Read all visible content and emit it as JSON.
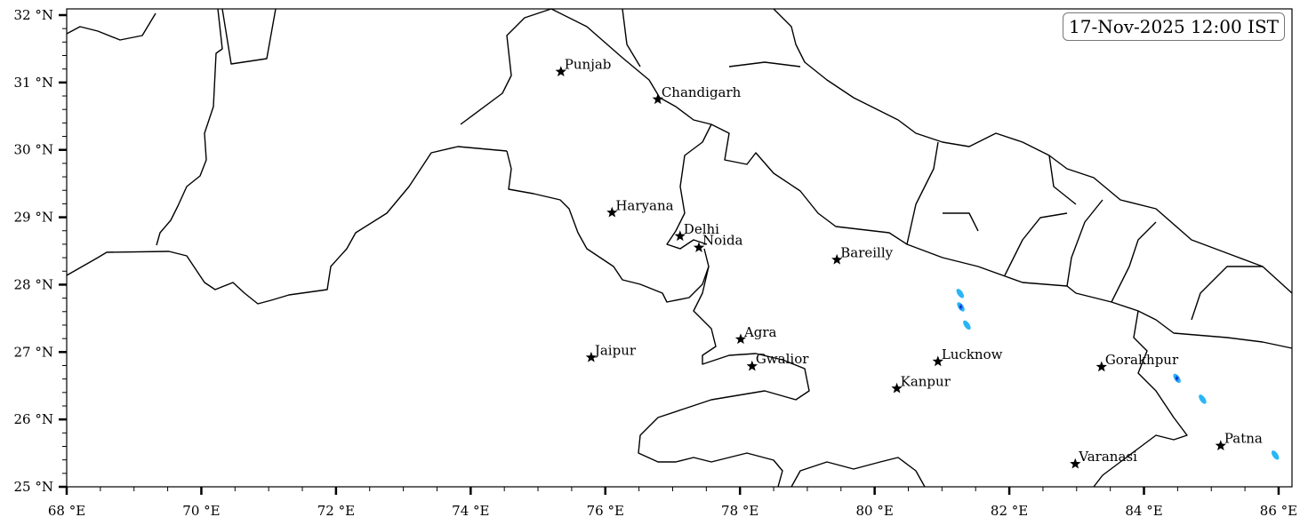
{
  "map": {
    "timestamp": "17-Nov-2025 12:00 IST",
    "extent": {
      "lon": [
        68,
        86.2
      ],
      "lat": [
        25,
        32.1
      ]
    },
    "x_ticks": [
      {
        "value": 68,
        "label": "68 °E"
      },
      {
        "value": 70,
        "label": "70 °E"
      },
      {
        "value": 72,
        "label": "72 °E"
      },
      {
        "value": 74,
        "label": "74 °E"
      },
      {
        "value": 76,
        "label": "76 °E"
      },
      {
        "value": 78,
        "label": "78 °E"
      },
      {
        "value": 80,
        "label": "80 °E"
      },
      {
        "value": 82,
        "label": "82 °E"
      },
      {
        "value": 84,
        "label": "84 °E"
      },
      {
        "value": 86,
        "label": "86 °E"
      }
    ],
    "y_ticks": [
      {
        "value": 25,
        "label": "25 °N"
      },
      {
        "value": 26,
        "label": "26 °N"
      },
      {
        "value": 27,
        "label": "27 °N"
      },
      {
        "value": 28,
        "label": "28 °N"
      },
      {
        "value": 29,
        "label": "29 °N"
      },
      {
        "value": 30,
        "label": "30 °N"
      },
      {
        "value": 31,
        "label": "31 °N"
      },
      {
        "value": 32,
        "label": "32 °N"
      }
    ],
    "cities": [
      {
        "name": "Punjab",
        "lon": 75.34,
        "lat": 31.16
      },
      {
        "name": "Chandigarh",
        "lon": 76.78,
        "lat": 30.75
      },
      {
        "name": "Haryana",
        "lon": 76.1,
        "lat": 29.07
      },
      {
        "name": "Delhi",
        "lon": 77.11,
        "lat": 28.72
      },
      {
        "name": "Noida",
        "lon": 77.39,
        "lat": 28.55
      },
      {
        "name": "Bareilly",
        "lon": 79.44,
        "lat": 28.37
      },
      {
        "name": "Agra",
        "lon": 78.01,
        "lat": 27.19
      },
      {
        "name": "Jaipur",
        "lon": 75.79,
        "lat": 26.92
      },
      {
        "name": "Gwalior",
        "lon": 78.18,
        "lat": 26.79
      },
      {
        "name": "Lucknow",
        "lon": 80.94,
        "lat": 26.86
      },
      {
        "name": "Kanpur",
        "lon": 80.33,
        "lat": 26.46
      },
      {
        "name": "Gorakhpur",
        "lon": 83.37,
        "lat": 26.78
      },
      {
        "name": "Varanasi",
        "lon": 82.98,
        "lat": 25.34
      },
      {
        "name": "Patna",
        "lon": 85.14,
        "lat": 25.61
      }
    ],
    "precip_cells": [
      {
        "lon": 81.27,
        "lat": 27.87,
        "intensity": "light"
      },
      {
        "lon": 81.28,
        "lat": 27.67,
        "intensity": "heavy"
      },
      {
        "lon": 81.37,
        "lat": 27.4,
        "intensity": "light"
      },
      {
        "lon": 84.49,
        "lat": 26.61,
        "intensity": "heavy"
      },
      {
        "lon": 84.87,
        "lat": 26.3,
        "intensity": "light"
      },
      {
        "lon": 85.95,
        "lat": 25.47,
        "intensity": "light"
      }
    ],
    "colors": {
      "light": "#29b6f6",
      "medium": "#1e6cff",
      "heavy": "#0a1aa0",
      "border": "#000000"
    }
  }
}
